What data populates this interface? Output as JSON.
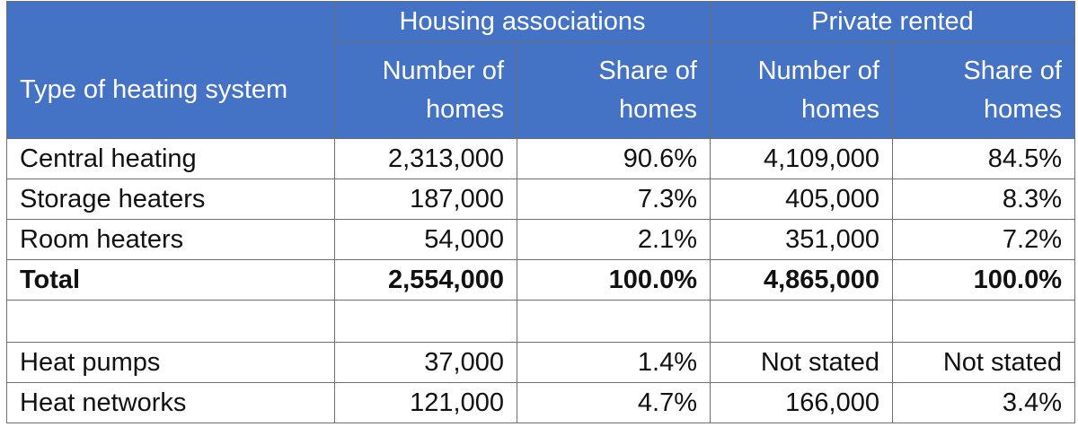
{
  "header": {
    "group_1": "Housing associations",
    "group_2": "Private rented",
    "type_col": "Type of heating system",
    "number_col": "Number of homes",
    "share_col": "Share of homes"
  },
  "rows": [
    {
      "label": "Central heating",
      "ha_number": "2,313,000",
      "ha_share": "90.6%",
      "pr_number": "4,109,000",
      "pr_share": "84.5%"
    },
    {
      "label": "Storage heaters",
      "ha_number": "187,000",
      "ha_share": "7.3%",
      "pr_number": "405,000",
      "pr_share": "8.3%"
    },
    {
      "label": "Room heaters",
      "ha_number": "54,000",
      "ha_share": "2.1%",
      "pr_number": "351,000",
      "pr_share": "7.2%"
    },
    {
      "label": "Total",
      "ha_number": "2,554,000",
      "ha_share": "100.0%",
      "pr_number": "4,865,000",
      "pr_share": "100.0%"
    },
    {
      "label": "",
      "ha_number": "",
      "ha_share": "",
      "pr_number": "",
      "pr_share": ""
    },
    {
      "label": "Heat pumps",
      "ha_number": "37,000",
      "ha_share": "1.4%",
      "pr_number": "Not stated",
      "pr_share": "Not stated"
    },
    {
      "label": "Heat networks",
      "ha_number": "121,000",
      "ha_share": "4.7%",
      "pr_number": "166,000",
      "pr_share": "3.4%"
    }
  ]
}
